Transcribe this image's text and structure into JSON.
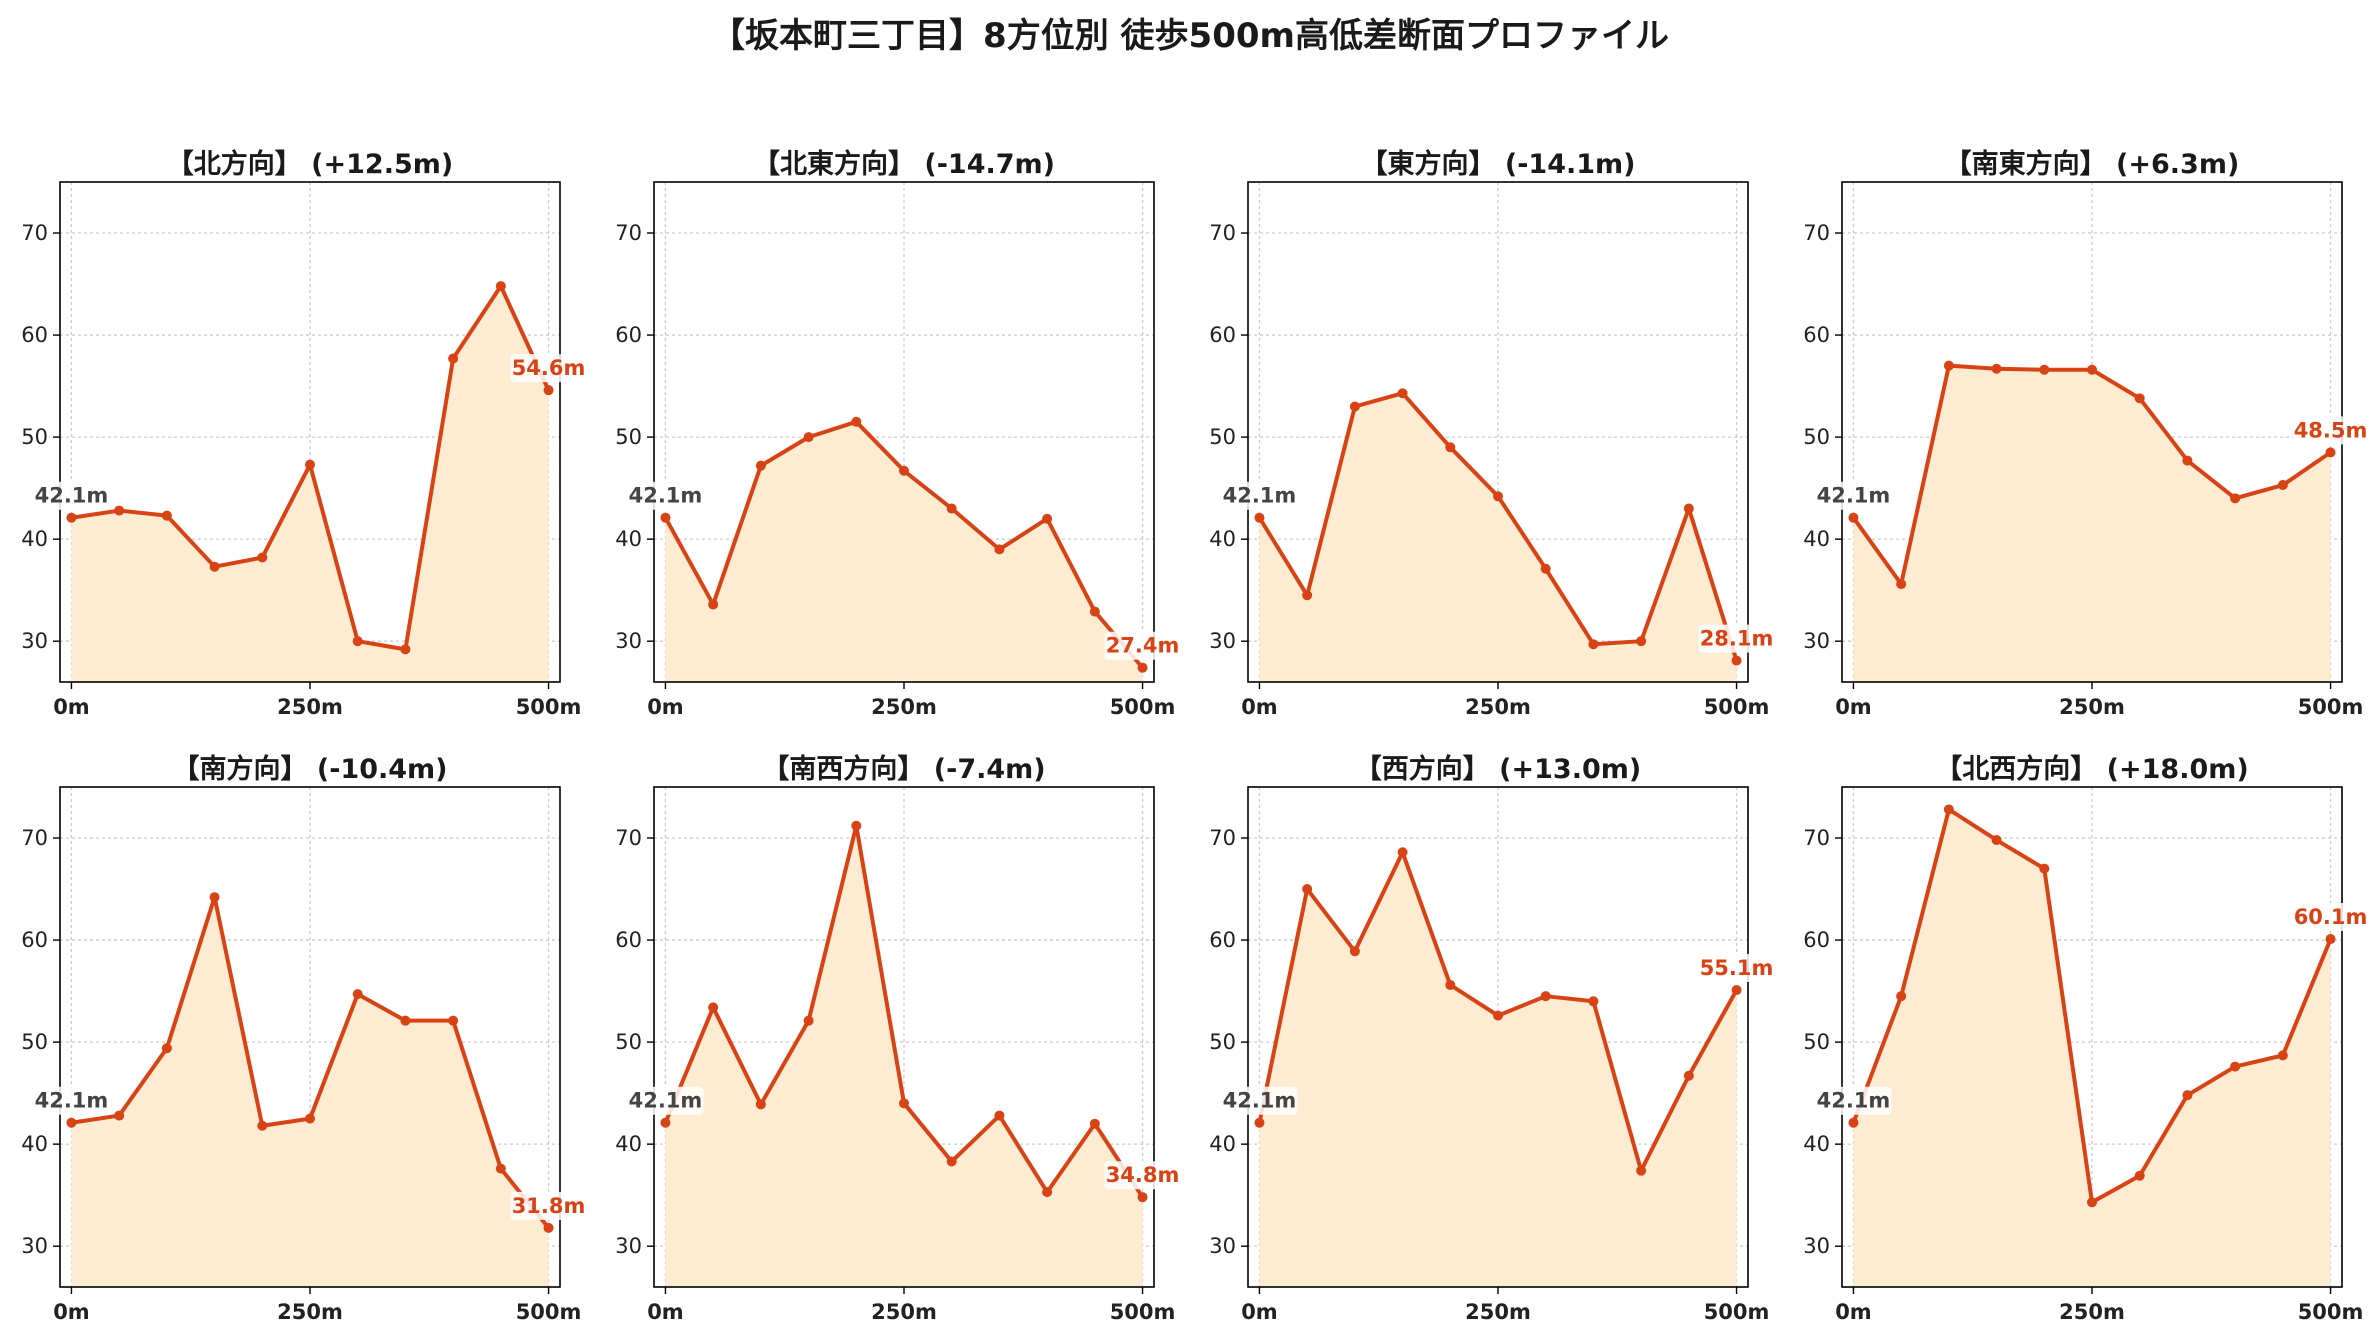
{
  "title": "【坂本町三丁目】8方位別 徒歩500m高低差断面プロファイル",
  "colors": {
    "line": "#d84315",
    "fill": "#fdebd2",
    "grid": "#cccccc"
  },
  "chart_data": [
    {
      "type": "area",
      "title": "【北方向】 (+12.5m)",
      "x": [
        0,
        50,
        100,
        150,
        200,
        250,
        300,
        350,
        400,
        450,
        500
      ],
      "values": [
        42.1,
        42.8,
        42.3,
        37.3,
        38.2,
        47.3,
        30.0,
        29.2,
        57.7,
        64.8,
        54.6
      ],
      "xticks": [
        "0m",
        "250m",
        "500m"
      ],
      "yticks": [
        30,
        40,
        50,
        60,
        70
      ],
      "ylim": [
        26,
        75
      ],
      "xlim": [
        -12,
        512
      ],
      "grid": true,
      "start_label": "42.1m",
      "end_label": "54.6m"
    },
    {
      "type": "area",
      "title": "【北東方向】 (-14.7m)",
      "x": [
        0,
        50,
        100,
        150,
        200,
        250,
        300,
        350,
        400,
        450,
        500
      ],
      "values": [
        42.1,
        33.6,
        47.2,
        50.0,
        51.5,
        46.7,
        43.0,
        39.0,
        42.0,
        32.9,
        27.4
      ],
      "xticks": [
        "0m",
        "250m",
        "500m"
      ],
      "yticks": [
        30,
        40,
        50,
        60,
        70
      ],
      "ylim": [
        26,
        75
      ],
      "xlim": [
        -12,
        512
      ],
      "grid": true,
      "start_label": "42.1m",
      "end_label": "27.4m"
    },
    {
      "type": "area",
      "title": "【東方向】 (-14.1m)",
      "x": [
        0,
        50,
        100,
        150,
        200,
        250,
        300,
        350,
        400,
        450,
        500
      ],
      "values": [
        42.1,
        34.5,
        53.0,
        54.3,
        49.0,
        44.2,
        37.1,
        29.7,
        30.0,
        43.0,
        28.1
      ],
      "xticks": [
        "0m",
        "250m",
        "500m"
      ],
      "yticks": [
        30,
        40,
        50,
        60,
        70
      ],
      "ylim": [
        26,
        75
      ],
      "xlim": [
        -12,
        512
      ],
      "grid": true,
      "start_label": "42.1m",
      "end_label": "28.1m"
    },
    {
      "type": "area",
      "title": "【南東方向】 (+6.3m)",
      "x": [
        0,
        50,
        100,
        150,
        200,
        250,
        300,
        350,
        400,
        450,
        500
      ],
      "values": [
        42.1,
        35.6,
        57.0,
        56.7,
        56.6,
        56.6,
        53.8,
        47.7,
        44.0,
        45.3,
        48.5
      ],
      "xticks": [
        "0m",
        "250m",
        "500m"
      ],
      "yticks": [
        30,
        40,
        50,
        60,
        70
      ],
      "ylim": [
        26,
        75
      ],
      "xlim": [
        -12,
        512
      ],
      "grid": true,
      "start_label": "42.1m",
      "end_label": "48.5m"
    },
    {
      "type": "area",
      "title": "【南方向】 (-10.4m)",
      "x": [
        0,
        50,
        100,
        150,
        200,
        250,
        300,
        350,
        400,
        450,
        500
      ],
      "values": [
        42.1,
        42.8,
        49.4,
        64.2,
        41.8,
        42.5,
        54.7,
        52.1,
        52.1,
        37.6,
        31.8
      ],
      "xticks": [
        "0m",
        "250m",
        "500m"
      ],
      "yticks": [
        30,
        40,
        50,
        60,
        70
      ],
      "ylim": [
        26,
        75
      ],
      "xlim": [
        -12,
        512
      ],
      "grid": true,
      "start_label": "42.1m",
      "end_label": "31.8m"
    },
    {
      "type": "area",
      "title": "【南西方向】 (-7.4m)",
      "x": [
        0,
        50,
        100,
        150,
        200,
        250,
        300,
        350,
        400,
        450,
        500
      ],
      "values": [
        42.1,
        53.4,
        43.9,
        52.1,
        71.2,
        44.0,
        38.3,
        42.8,
        35.3,
        42.0,
        34.8
      ],
      "xticks": [
        "0m",
        "250m",
        "500m"
      ],
      "yticks": [
        30,
        40,
        50,
        60,
        70
      ],
      "ylim": [
        26,
        75
      ],
      "xlim": [
        -12,
        512
      ],
      "grid": true,
      "start_label": "42.1m",
      "end_label": "34.8m"
    },
    {
      "type": "area",
      "title": "【西方向】 (+13.0m)",
      "x": [
        0,
        50,
        100,
        150,
        200,
        250,
        300,
        350,
        400,
        450,
        500
      ],
      "values": [
        42.1,
        65.0,
        58.9,
        68.6,
        55.6,
        52.6,
        54.5,
        54.0,
        37.4,
        46.7,
        55.1
      ],
      "xticks": [
        "0m",
        "250m",
        "500m"
      ],
      "yticks": [
        30,
        40,
        50,
        60,
        70
      ],
      "ylim": [
        26,
        75
      ],
      "xlim": [
        -12,
        512
      ],
      "grid": true,
      "start_label": "42.1m",
      "end_label": "55.1m"
    },
    {
      "type": "area",
      "title": "【北西方向】 (+18.0m)",
      "x": [
        0,
        50,
        100,
        150,
        200,
        250,
        300,
        350,
        400,
        450,
        500
      ],
      "values": [
        42.1,
        54.5,
        72.8,
        69.8,
        67.0,
        34.3,
        36.9,
        44.8,
        47.6,
        48.7,
        60.1
      ],
      "xticks": [
        "0m",
        "250m",
        "500m"
      ],
      "yticks": [
        30,
        40,
        50,
        60,
        70
      ],
      "ylim": [
        26,
        75
      ],
      "xlim": [
        -12,
        512
      ],
      "grid": true,
      "start_label": "42.1m",
      "end_label": "60.1m"
    }
  ]
}
